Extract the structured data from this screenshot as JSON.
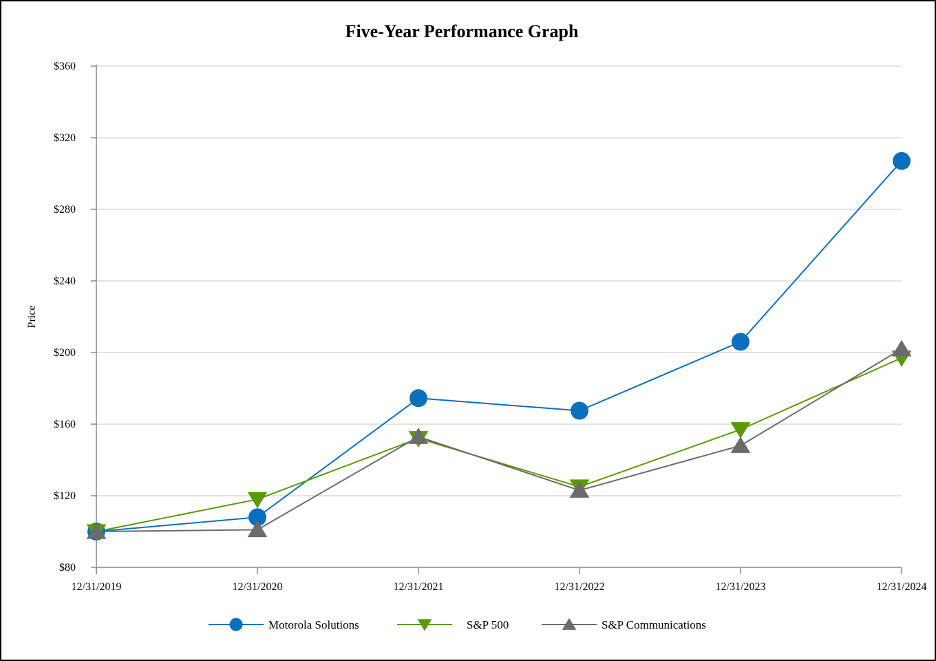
{
  "chart_data": {
    "type": "line",
    "title": "Five-Year Performance Graph",
    "ylabel": "Price",
    "xlabel": "",
    "ylim": [
      80,
      360
    ],
    "yticks": [
      80,
      120,
      160,
      200,
      240,
      280,
      320,
      360
    ],
    "ytick_labels": [
      "$80",
      "$120",
      "$160",
      "$200",
      "$240",
      "$280",
      "$320",
      "$360"
    ],
    "categories": [
      "12/31/2019",
      "12/31/2020",
      "12/31/2021",
      "12/31/2022",
      "12/31/2023",
      "12/31/2024"
    ],
    "grid": true,
    "legend_position": "bottom",
    "series": [
      {
        "name": "Motorola Solutions",
        "color": "#0b6fc0",
        "marker": "circle",
        "values": [
          100,
          108,
          174.5,
          167.5,
          206,
          307
        ]
      },
      {
        "name": "S&P 500",
        "color": "#5a9a0a",
        "marker": "triangle-down",
        "values": [
          100,
          118,
          152,
          125,
          157,
          197
        ]
      },
      {
        "name": "S&P Communications",
        "color": "#6b6b6b",
        "marker": "triangle-up",
        "values": [
          100,
          101,
          153,
          123,
          148,
          202
        ]
      }
    ]
  }
}
